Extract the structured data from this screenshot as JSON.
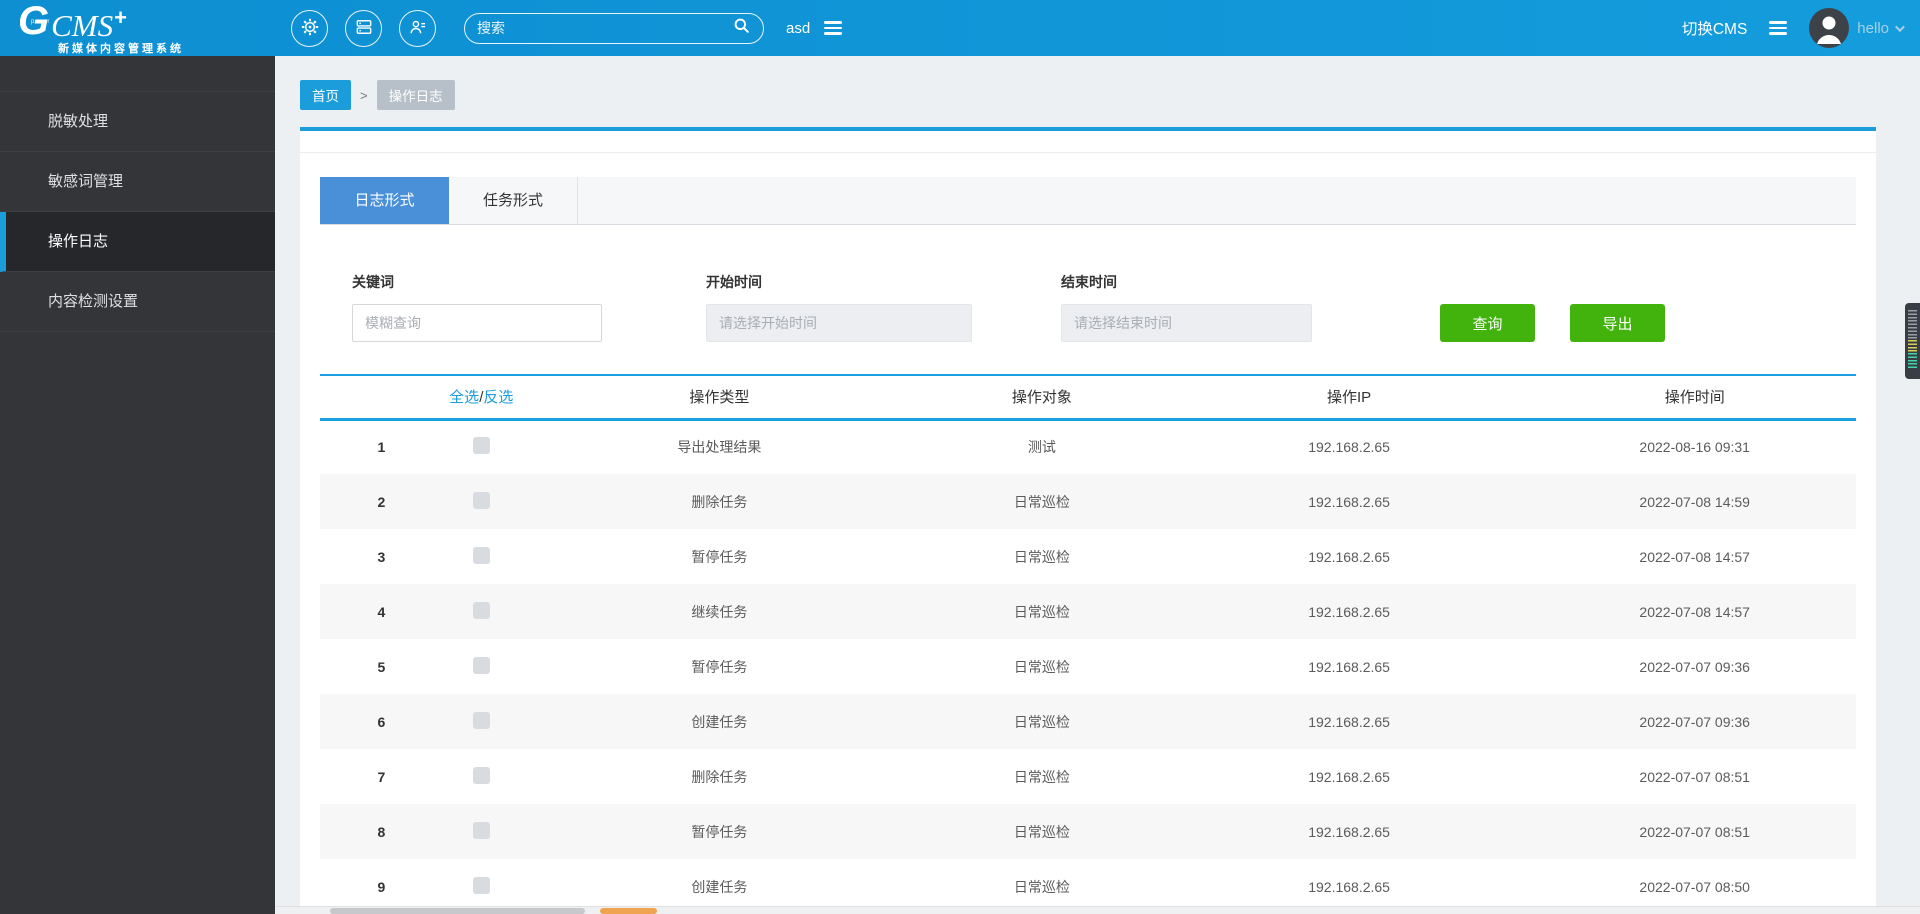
{
  "header": {
    "logo": {
      "g": "G",
      "power": "power",
      "cms": "CMS",
      "plus": "+",
      "subtitle": "新媒体内容管理系统"
    },
    "icons": [
      "settings",
      "modules",
      "user-list"
    ],
    "search": {
      "placeholder": "搜索"
    },
    "user_short": "asd",
    "switch_cms": "切换CMS",
    "user_menu_name": "hello"
  },
  "sidebar": {
    "items": [
      {
        "label": "脱敏处理",
        "active": false
      },
      {
        "label": "敏感词管理",
        "active": false
      },
      {
        "label": "操作日志",
        "active": true
      },
      {
        "label": "内容检测设置",
        "active": false
      }
    ]
  },
  "breadcrumb": {
    "home": "首页",
    "separator": ">",
    "current": "操作日志"
  },
  "tabs": [
    {
      "label": "日志形式",
      "active": true
    },
    {
      "label": "任务形式",
      "active": false
    }
  ],
  "filters": {
    "keyword": {
      "label": "关键词",
      "placeholder": "模糊查询",
      "value": ""
    },
    "start_time": {
      "label": "开始时间",
      "placeholder": "请选择开始时间",
      "value": ""
    },
    "end_time": {
      "label": "结束时间",
      "placeholder": "请选择结束时间",
      "value": ""
    },
    "query_button": "查询",
    "export_button": "导出"
  },
  "table": {
    "select_all": "全选",
    "select_slash": "/",
    "select_invert": "反选",
    "columns": [
      "操作类型",
      "操作对象",
      "操作IP",
      "操作时间"
    ],
    "rows": [
      {
        "index": 1,
        "type": "导出处理结果",
        "target": "测试",
        "ip": "192.168.2.65",
        "time": "2022-08-16 09:31"
      },
      {
        "index": 2,
        "type": "删除任务",
        "target": "日常巡检",
        "ip": "192.168.2.65",
        "time": "2022-07-08 14:59"
      },
      {
        "index": 3,
        "type": "暂停任务",
        "target": "日常巡检",
        "ip": "192.168.2.65",
        "time": "2022-07-08 14:57"
      },
      {
        "index": 4,
        "type": "继续任务",
        "target": "日常巡检",
        "ip": "192.168.2.65",
        "time": "2022-07-08 14:57"
      },
      {
        "index": 5,
        "type": "暂停任务",
        "target": "日常巡检",
        "ip": "192.168.2.65",
        "time": "2022-07-07 09:36"
      },
      {
        "index": 6,
        "type": "创建任务",
        "target": "日常巡检",
        "ip": "192.168.2.65",
        "time": "2022-07-07 09:36"
      },
      {
        "index": 7,
        "type": "删除任务",
        "target": "日常巡检",
        "ip": "192.168.2.65",
        "time": "2022-07-07 08:51"
      },
      {
        "index": 8,
        "type": "暂停任务",
        "target": "日常巡检",
        "ip": "192.168.2.65",
        "time": "2022-07-07 08:51"
      },
      {
        "index": 9,
        "type": "创建任务",
        "target": "日常巡检",
        "ip": "192.168.2.65",
        "time": "2022-07-07 08:50"
      }
    ]
  },
  "colors": {
    "header_blue": "#0f95d8",
    "accent_blue": "#1b9cdb",
    "tab_active_blue": "#4a90d9",
    "button_green": "#42b30d",
    "scroll_marker_orange": "#f0a44f"
  }
}
